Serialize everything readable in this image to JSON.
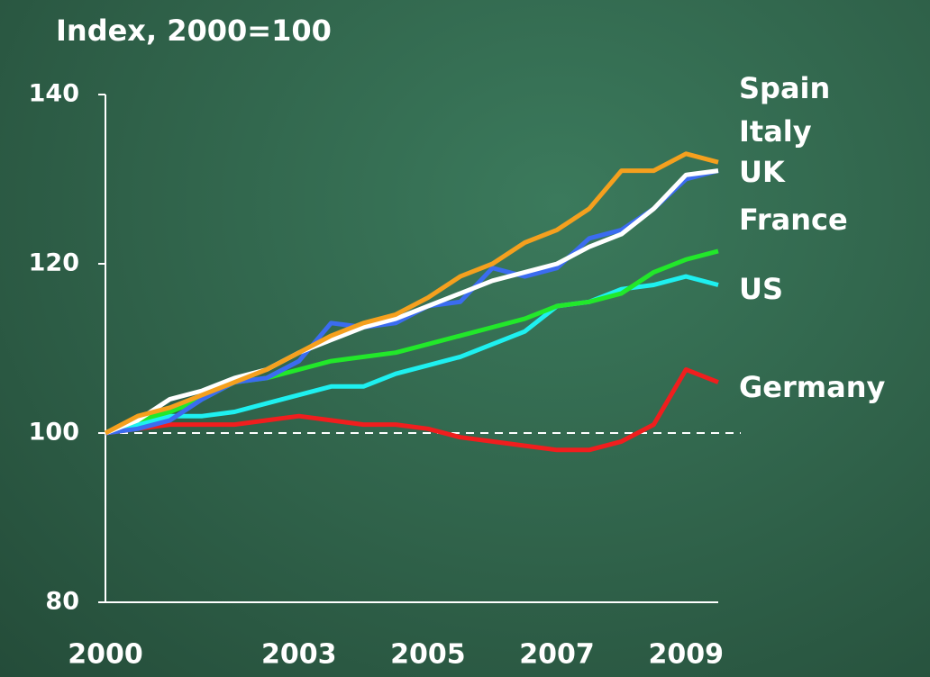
{
  "chart_data": {
    "type": "line",
    "title": "Index, 2000=100",
    "x": [
      2000,
      2000.5,
      2001,
      2001.5,
      2002,
      2002.5,
      2003,
      2003.5,
      2004,
      2004.5,
      2005,
      2005.5,
      2006,
      2006.5,
      2007,
      2007.5,
      2008,
      2008.5,
      2009,
      2009.5
    ],
    "series": [
      {
        "name": "Spain",
        "color": "#f5a01e",
        "values": [
          100,
          102,
          103,
          104.5,
          106,
          107.5,
          109.5,
          111.5,
          113,
          114,
          116,
          118.5,
          120,
          122.5,
          124,
          126.5,
          131,
          131,
          133,
          132
        ]
      },
      {
        "name": "Italy",
        "color": "#ffffff",
        "values": [
          100,
          101.5,
          104,
          105,
          106.5,
          107.5,
          109.5,
          111,
          112.5,
          113.5,
          115,
          116.5,
          118,
          119,
          120,
          122,
          123.5,
          126.5,
          130.5,
          131
        ]
      },
      {
        "name": "UK",
        "color": "#3b6cf0",
        "values": [
          100,
          100.5,
          101.5,
          104,
          106,
          106.5,
          108.5,
          113,
          112.5,
          113,
          115,
          115.5,
          119.5,
          118.5,
          119.5,
          123,
          124,
          126.5,
          130,
          131
        ]
      },
      {
        "name": "France",
        "color": "#22e82a",
        "values": [
          100,
          101.5,
          102.5,
          104,
          106,
          106.5,
          107.5,
          108.5,
          109,
          109.5,
          110.5,
          111.5,
          112.5,
          113.5,
          115,
          115.5,
          116.5,
          119,
          120.5,
          121.5
        ]
      },
      {
        "name": "US",
        "color": "#1ef0f0",
        "values": [
          100,
          101,
          102,
          102,
          102.5,
          103.5,
          104.5,
          105.5,
          105.5,
          107,
          108,
          109,
          110.5,
          112,
          115,
          115.5,
          117,
          117.5,
          118.5,
          117.5
        ]
      },
      {
        "name": "Germany",
        "color": "#f01e1e",
        "values": [
          100,
          100.5,
          101,
          101,
          101,
          101.5,
          102,
          101.5,
          101,
          101,
          100.5,
          99.5,
          99,
          98.5,
          98,
          98,
          99,
          101,
          107.5,
          106
        ]
      }
    ],
    "xlim": [
      2000,
      2009.5
    ],
    "xticks": [
      2000,
      2003,
      2005,
      2007,
      2009
    ],
    "ylim": [
      80,
      140
    ],
    "yticks": [
      80,
      100,
      120,
      140
    ],
    "reference_line": 100
  }
}
